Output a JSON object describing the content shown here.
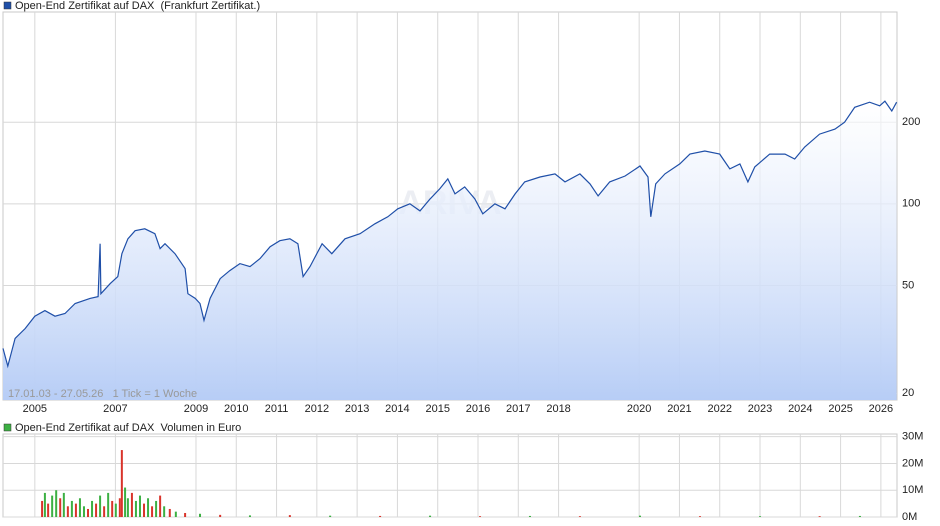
{
  "chart_data": [
    {
      "type": "line",
      "log_scale": true,
      "grid": true,
      "annotation": "17.01.03 - 27.05.26   1 Tick = 1 Woche",
      "watermark": "ARIVA",
      "area_color": "#b7cdf6",
      "xlim": [
        2004.21,
        2026.4
      ],
      "xticks": [
        2005,
        2007,
        2009,
        2010,
        2011,
        2012,
        2013,
        2014,
        2015,
        2016,
        2017,
        2018,
        2020,
        2021,
        2022,
        2023,
        2024,
        2025,
        2026
      ],
      "ylim": [
        18.9,
        510
      ],
      "yticks": [
        20,
        50,
        100,
        200
      ],
      "series": [
        {
          "name": "Open-End Zertifikat auf DAX  (Frankfurt Zertifikat.)",
          "color": "#1f4fa8",
          "x": [
            2004.21,
            2004.33,
            2004.51,
            2004.76,
            2005.0,
            2005.25,
            2005.5,
            2005.75,
            2006.0,
            2006.37,
            2006.57,
            2006.62,
            2006.64,
            2006.87,
            2007.06,
            2007.16,
            2007.31,
            2007.49,
            2007.73,
            2007.98,
            2008.11,
            2008.23,
            2008.48,
            2008.73,
            2008.8,
            2008.98,
            2009.1,
            2009.2,
            2009.35,
            2009.6,
            2009.84,
            2010.09,
            2010.34,
            2010.59,
            2010.84,
            2011.08,
            2011.33,
            2011.53,
            2011.66,
            2011.83,
            2012.13,
            2012.37,
            2012.7,
            2013.07,
            2013.44,
            2013.76,
            2014.01,
            2014.31,
            2014.56,
            2014.81,
            2015.05,
            2015.25,
            2015.43,
            2015.67,
            2015.92,
            2016.12,
            2016.42,
            2016.67,
            2016.92,
            2017.16,
            2017.54,
            2017.91,
            2018.16,
            2018.53,
            2018.78,
            2018.98,
            2019.27,
            2019.65,
            2020.02,
            2020.22,
            2020.29,
            2020.41,
            2020.64,
            2021.01,
            2021.26,
            2021.63,
            2022.0,
            2022.25,
            2022.5,
            2022.7,
            2022.87,
            2023.24,
            2023.62,
            2023.86,
            2024.11,
            2024.48,
            2024.86,
            2025.1,
            2025.35,
            2025.72,
            2025.97,
            2026.1,
            2026.27,
            2026.39
          ],
          "values": [
            29.3,
            25.2,
            31.9,
            34.7,
            38.5,
            40.4,
            38.5,
            39.4,
            42.9,
            44.8,
            45.5,
            71.3,
            46.6,
            50.8,
            53.9,
            65.5,
            74.3,
            79.6,
            80.9,
            77.6,
            68.4,
            71.3,
            65.5,
            57.7,
            46.6,
            44.8,
            42.9,
            37.2,
            44.8,
            53.0,
            56.7,
            60.2,
            58.7,
            62.8,
            69.5,
            73.1,
            74.3,
            71.3,
            53.9,
            58.7,
            71.3,
            65.5,
            74.3,
            77.6,
            84.4,
            89.6,
            95.9,
            100,
            94.2,
            104.3,
            113.5,
            123.6,
            108.8,
            115.5,
            104.3,
            91.9,
            100,
            95.9,
            108.8,
            120.5,
            125.6,
            128.9,
            120.5,
            128.9,
            118.4,
            107,
            120.5,
            126.7,
            137.9,
            125.6,
            89.6,
            118.4,
            128.9,
            140.4,
            152.6,
            156.6,
            152.6,
            134.5,
            140.4,
            120.5,
            136.8,
            152.6,
            152.6,
            146.3,
            162,
            180.8,
            188.7,
            200,
            227,
            237,
            230,
            239,
            220,
            237
          ]
        }
      ]
    },
    {
      "type": "bar",
      "title": "Open-End Zertifikat auf DAX  Volumen in Euro",
      "legend_color": "#3cb043",
      "grid": true,
      "xlim": [
        2004.21,
        2026.4
      ],
      "xticks": [
        2005,
        2007,
        2009,
        2010,
        2011,
        2012,
        2013,
        2014,
        2015,
        2016,
        2017,
        2018,
        2020,
        2021,
        2022,
        2023,
        2024,
        2025,
        2026
      ],
      "ylim": [
        0,
        31000000
      ],
      "yticks": [
        {
          "value": 0,
          "label": "0M"
        },
        {
          "value": 10000000,
          "label": "10M"
        },
        {
          "value": 20000000,
          "label": "20M"
        },
        {
          "value": 30000000,
          "label": "30M"
        }
      ],
      "x": [
        2005.18,
        2005.25,
        2005.33,
        2005.43,
        2005.53,
        2005.63,
        2005.72,
        2005.82,
        2005.92,
        2006.02,
        2006.12,
        2006.22,
        2006.32,
        2006.42,
        2006.52,
        2006.62,
        2006.72,
        2006.82,
        2006.92,
        2007.01,
        2007.11,
        2007.16,
        2007.24,
        2007.31,
        2007.41,
        2007.51,
        2007.61,
        2007.71,
        2007.81,
        2007.91,
        2008.01,
        2008.11,
        2008.21,
        2008.35,
        2008.5,
        2008.73,
        2009.1,
        2009.6,
        2010.34,
        2011.33,
        2012.33,
        2013.57,
        2014.81,
        2016.05,
        2017.29,
        2018.53,
        2020.02,
        2021.51,
        2023.0,
        2024.48,
        2025.48
      ],
      "values": [
        6000000,
        9000000,
        5000000,
        8000000,
        10000000,
        7000000,
        9000000,
        4000000,
        6000000,
        5000000,
        7000000,
        4000000,
        3000000,
        6000000,
        5000000,
        8000000,
        4000000,
        9000000,
        6000000,
        5000000,
        7000000,
        25000000,
        11000000,
        7000000,
        9000000,
        6000000,
        8000000,
        5000000,
        7000000,
        4000000,
        6000000,
        8000000,
        4000000,
        3000000,
        2000000,
        1500000,
        1200000,
        800000,
        600000,
        700000,
        500000,
        400000,
        500000,
        300000,
        400000,
        300000,
        500000,
        300000,
        300000,
        300000,
        400000
      ],
      "colors": [
        "#d9342b",
        "#3cb043",
        "#d9342b",
        "#3cb043",
        "#3cb043",
        "#d9342b",
        "#3cb043",
        "#d9342b",
        "#3cb043",
        "#d9342b",
        "#3cb043",
        "#3cb043",
        "#d9342b",
        "#3cb043",
        "#d9342b",
        "#3cb043",
        "#d9342b",
        "#3cb043",
        "#d9342b",
        "#3cb043",
        "#d9342b",
        "#d9342b",
        "#3cb043",
        "#3cb043",
        "#d9342b",
        "#3cb043",
        "#3cb043",
        "#d9342b",
        "#3cb043",
        "#d9342b",
        "#3cb043",
        "#d9342b",
        "#3cb043",
        "#d9342b",
        "#3cb043",
        "#d9342b",
        "#3cb043",
        "#d9342b",
        "#3cb043",
        "#d9342b",
        "#3cb043",
        "#d9342b",
        "#3cb043",
        "#d9342b",
        "#3cb043",
        "#d9342b",
        "#3cb043",
        "#d9342b",
        "#3cb043",
        "#d9342b",
        "#3cb043"
      ]
    }
  ]
}
